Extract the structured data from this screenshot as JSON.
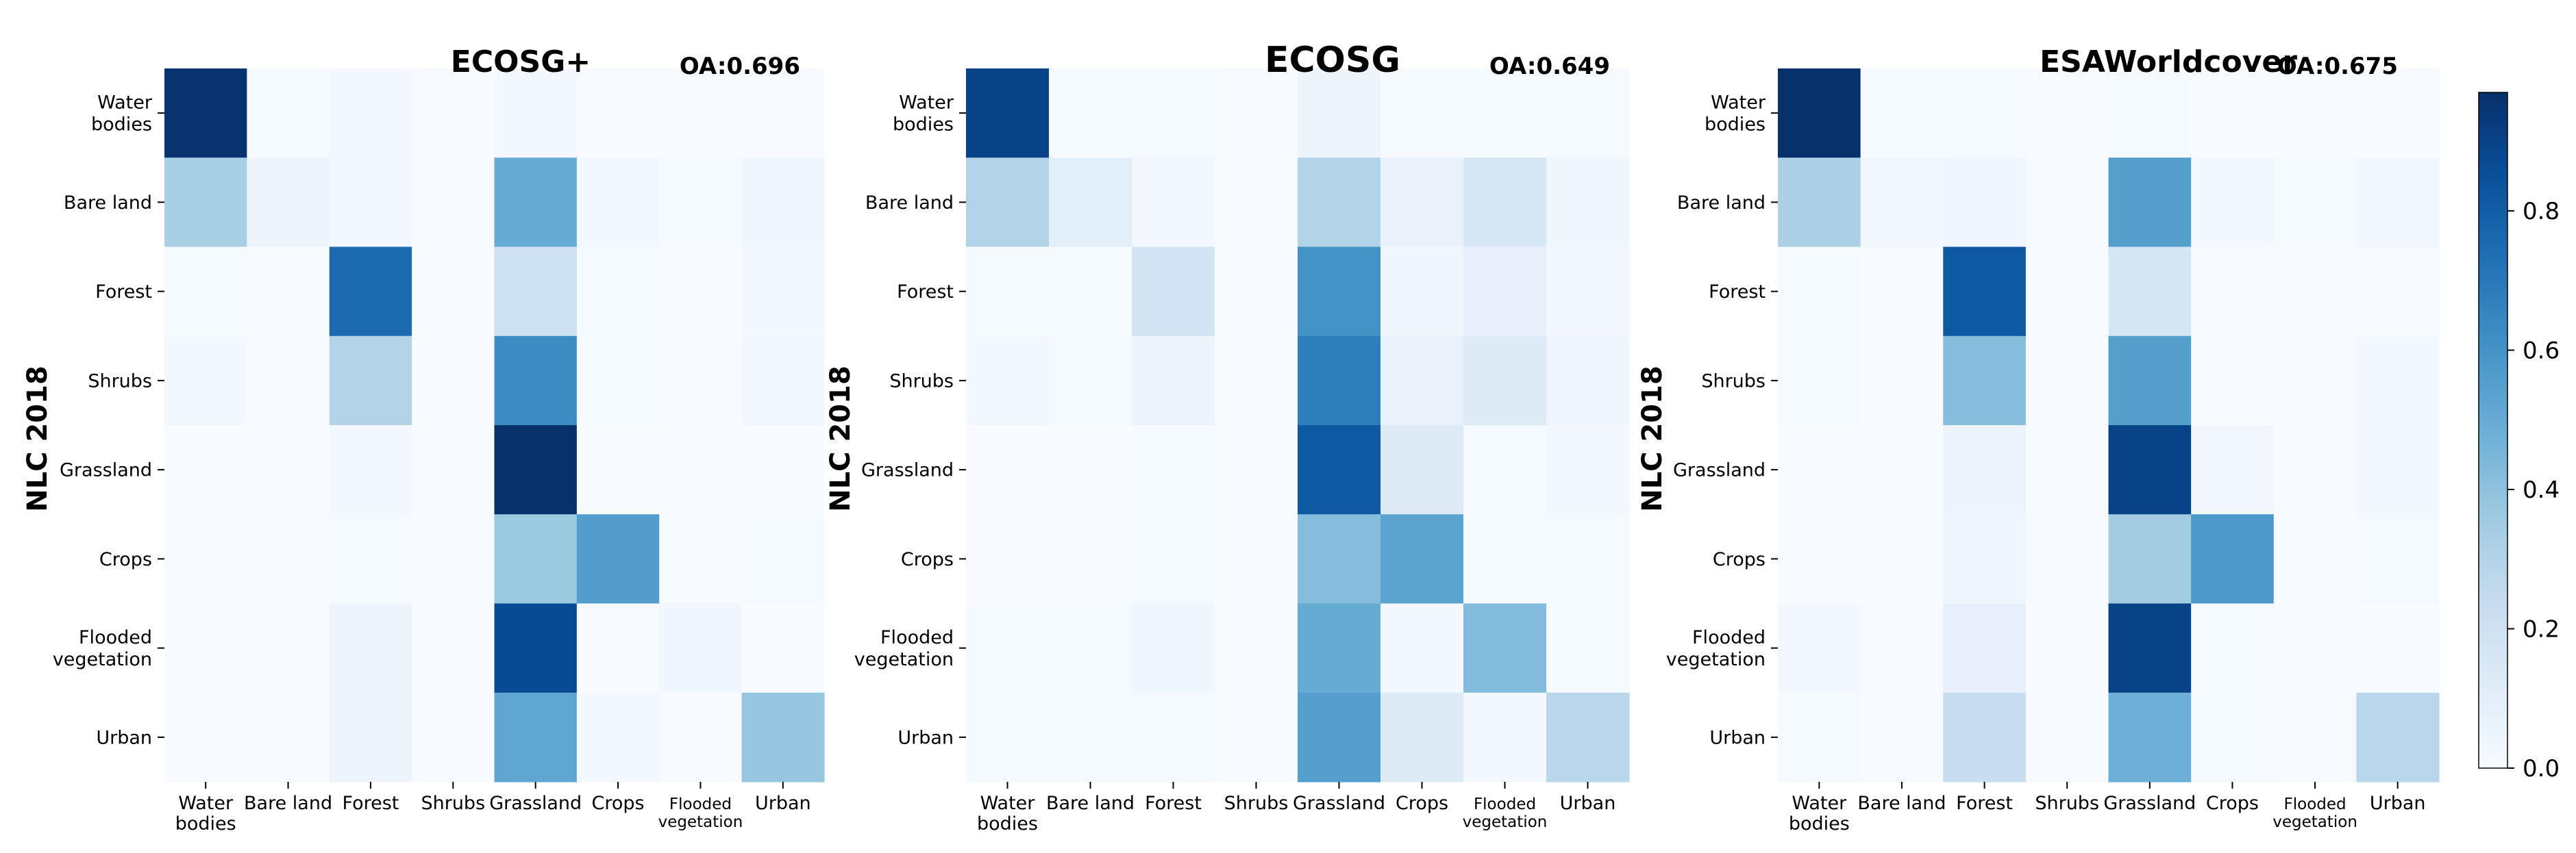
{
  "chart_data": [
    {
      "type": "heatmap",
      "title": "ECOSG+",
      "annotation": "OA:0.696",
      "ylabel": "NLC 2018",
      "xlabel": "",
      "rows": [
        "Water\nbodies",
        "Bare land",
        "Forest",
        "Shrubs",
        "Grassland",
        "Crops",
        "Flooded\nvegetation",
        "Urban"
      ],
      "cols": [
        "Water\nbodies",
        "Bare land",
        "Forest",
        "Shrubs",
        "Grassland",
        "Crops",
        "Flooded\nvegetation",
        "Urban"
      ],
      "values": [
        [
          0.96,
          0.01,
          0.02,
          0.0,
          0.02,
          0.0,
          0.0,
          0.0
        ],
        [
          0.33,
          0.05,
          0.03,
          0.0,
          0.5,
          0.02,
          0.01,
          0.04
        ],
        [
          0.01,
          0.0,
          0.75,
          0.0,
          0.2,
          0.01,
          0.0,
          0.02
        ],
        [
          0.02,
          0.0,
          0.3,
          0.0,
          0.63,
          0.01,
          0.0,
          0.03
        ],
        [
          0.0,
          0.0,
          0.02,
          0.0,
          0.98,
          0.0,
          0.0,
          0.0
        ],
        [
          0.0,
          0.0,
          0.01,
          0.0,
          0.37,
          0.56,
          0.0,
          0.01
        ],
        [
          0.0,
          0.0,
          0.05,
          0.0,
          0.87,
          0.0,
          0.04,
          0.0
        ],
        [
          0.0,
          0.0,
          0.05,
          0.0,
          0.52,
          0.02,
          0.0,
          0.38
        ]
      ]
    },
    {
      "type": "heatmap",
      "title": "ECOSG",
      "annotation": "OA:0.649",
      "ylabel": "NLC 2018",
      "xlabel": "",
      "rows": [
        "Water\nbodies",
        "Bare land",
        "Forest",
        "Shrubs",
        "Grassland",
        "Crops",
        "Flooded\nvegetation",
        "Urban"
      ],
      "cols": [
        "Water\nbodies",
        "Bare land",
        "Forest",
        "Shrubs",
        "Grassland",
        "Crops",
        "Flooded\nvegetation",
        "Urban"
      ],
      "values": [
        [
          0.9,
          0.01,
          0.01,
          0.0,
          0.05,
          0.01,
          0.01,
          0.01
        ],
        [
          0.3,
          0.1,
          0.02,
          0.0,
          0.3,
          0.07,
          0.15,
          0.04
        ],
        [
          0.01,
          0.01,
          0.18,
          0.0,
          0.6,
          0.04,
          0.08,
          0.03
        ],
        [
          0.02,
          0.01,
          0.05,
          0.0,
          0.68,
          0.07,
          0.12,
          0.04
        ],
        [
          0.0,
          0.0,
          0.01,
          0.0,
          0.82,
          0.12,
          0.01,
          0.02
        ],
        [
          0.0,
          0.0,
          0.01,
          0.0,
          0.42,
          0.53,
          0.01,
          0.01
        ],
        [
          0.01,
          0.01,
          0.04,
          0.0,
          0.5,
          0.02,
          0.43,
          0.01
        ],
        [
          0.01,
          0.01,
          0.01,
          0.0,
          0.55,
          0.12,
          0.02,
          0.28
        ]
      ]
    },
    {
      "type": "heatmap",
      "title": "ESAWorldcover",
      "annotation": "OA:0.675",
      "ylabel": "NLC 2018",
      "xlabel": "",
      "rows": [
        "Water\nbodies",
        "Bare land",
        "Forest",
        "Shrubs",
        "Grassland",
        "Crops",
        "Flooded\nvegetation",
        "Urban"
      ],
      "cols": [
        "Water\nbodies",
        "Bare land",
        "Forest",
        "Shrubs",
        "Grassland",
        "Crops",
        "Flooded\nvegetation",
        "Urban"
      ],
      "values": [
        [
          0.98,
          0.01,
          0.01,
          0.0,
          0.01,
          0.0,
          0.0,
          0.0
        ],
        [
          0.32,
          0.03,
          0.04,
          0.0,
          0.55,
          0.02,
          0.01,
          0.03
        ],
        [
          0.01,
          0.0,
          0.82,
          0.0,
          0.17,
          0.0,
          0.0,
          0.0
        ],
        [
          0.01,
          0.0,
          0.42,
          0.0,
          0.55,
          0.0,
          0.0,
          0.02
        ],
        [
          0.0,
          0.0,
          0.05,
          0.0,
          0.9,
          0.03,
          0.0,
          0.02
        ],
        [
          0.0,
          0.0,
          0.04,
          0.0,
          0.35,
          0.58,
          0.0,
          0.01
        ],
        [
          0.02,
          0.0,
          0.08,
          0.0,
          0.9,
          0.01,
          0.0,
          0.0
        ],
        [
          0.01,
          0.0,
          0.23,
          0.0,
          0.48,
          0.01,
          0.0,
          0.28
        ]
      ]
    }
  ],
  "colorbar": {
    "colormap": "Blues",
    "range": [
      0.0,
      0.97
    ],
    "ticks": [
      0.0,
      0.2,
      0.4,
      0.6,
      0.8
    ],
    "tick_labels": [
      "0.0",
      "0.2",
      "0.4",
      "0.6",
      "0.8"
    ]
  }
}
